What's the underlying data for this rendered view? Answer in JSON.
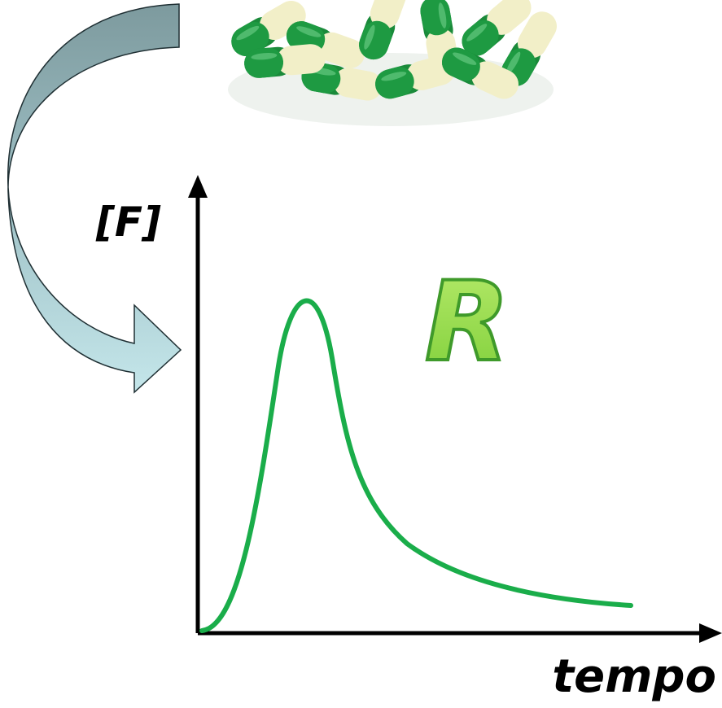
{
  "diagram": {
    "y_axis_label": "[F]",
    "x_axis_label": "tempo",
    "curve_label": "R"
  }
}
